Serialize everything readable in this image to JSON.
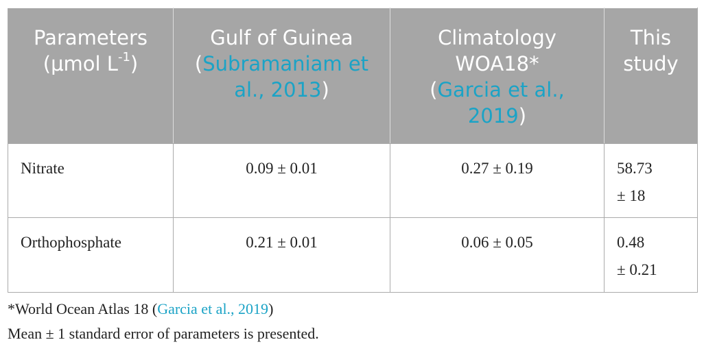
{
  "table": {
    "header": [
      {
        "parts": [
          "Parameters",
          "(μmol L",
          "-1",
          ")"
        ]
      },
      {
        "parts": [
          "Gulf of Guinea",
          "(",
          "Subramaniam et al., 2013",
          ")"
        ]
      },
      {
        "parts": [
          "Climatology",
          "WOA18*",
          "(",
          "Garcia et al., 2019",
          ")"
        ]
      },
      {
        "parts": [
          "This study"
        ]
      }
    ],
    "rows": [
      [
        "Nitrate",
        "0.09 ± 0.01",
        "0.27 ± 0.19",
        "58.73 ± 18"
      ],
      [
        "Orthophosphate",
        "0.21 ± 0.01",
        "0.06 ± 0.05",
        "0.48 ± 0.21"
      ]
    ]
  },
  "footnotes": [
    {
      "parts": [
        "*World Ocean Atlas 18 (",
        "Garcia et al., 2019",
        ")"
      ]
    },
    {
      "parts": [
        "Mean ± 1 standard error of parameters is presented."
      ]
    }
  ]
}
